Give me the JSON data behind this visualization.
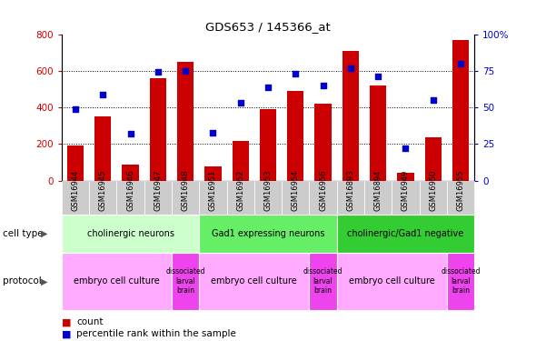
{
  "title": "GDS653 / 145366_at",
  "samples": [
    "GSM16944",
    "GSM16945",
    "GSM16946",
    "GSM16947",
    "GSM16948",
    "GSM16951",
    "GSM16952",
    "GSM16953",
    "GSM16954",
    "GSM16956",
    "GSM16893",
    "GSM16894",
    "GSM16949",
    "GSM16950",
    "GSM16955"
  ],
  "counts": [
    190,
    350,
    90,
    560,
    650,
    80,
    215,
    390,
    490,
    420,
    710,
    520,
    45,
    235,
    770
  ],
  "percentiles": [
    49,
    59,
    32,
    74,
    75,
    33,
    53,
    64,
    73,
    65,
    77,
    71,
    22,
    55,
    80
  ],
  "ylim_left": [
    0,
    800
  ],
  "ylim_right": [
    0,
    100
  ],
  "yticks_left": [
    0,
    200,
    400,
    600,
    800
  ],
  "yticks_right": [
    0,
    25,
    50,
    75,
    100
  ],
  "bar_color": "#cc0000",
  "dot_color": "#0000cc",
  "cell_types": [
    {
      "label": "cholinergic neurons",
      "start": 0,
      "end": 5,
      "color": "#ccffcc"
    },
    {
      "label": "Gad1 expressing neurons",
      "start": 5,
      "end": 10,
      "color": "#66ee66"
    },
    {
      "label": "cholinergic/Gad1 negative",
      "start": 10,
      "end": 15,
      "color": "#33cc33"
    }
  ],
  "protocols": [
    {
      "label": "embryo cell culture",
      "start": 0,
      "end": 4,
      "color": "#ffaaff"
    },
    {
      "label": "dissociated\nlarval\nbrain",
      "start": 4,
      "end": 5,
      "color": "#ee44ee"
    },
    {
      "label": "embryo cell culture",
      "start": 5,
      "end": 9,
      "color": "#ffaaff"
    },
    {
      "label": "dissociated\nlarval\nbrain",
      "start": 9,
      "end": 10,
      "color": "#ee44ee"
    },
    {
      "label": "embryo cell culture",
      "start": 10,
      "end": 14,
      "color": "#ffaaff"
    },
    {
      "label": "dissociated\nlarval\nbrain",
      "start": 14,
      "end": 15,
      "color": "#ee44ee"
    }
  ],
  "sample_bg_color": "#cccccc",
  "legend_count_color": "#cc0000",
  "legend_dot_color": "#0000cc"
}
